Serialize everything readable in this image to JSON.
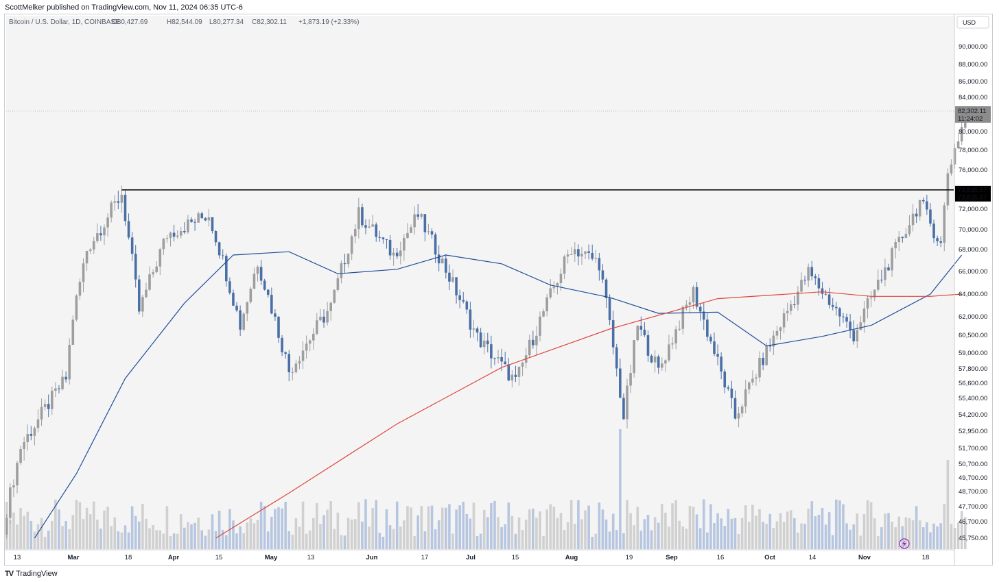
{
  "header": {
    "published": "ScottMelker published on TradingView.com, Nov 11, 2024 06:35 UTC-6"
  },
  "legend": {
    "symbol": "Bitcoin / U.S. Dollar, 1D, COINBASE",
    "open": "O80,427.69",
    "high": "H82,544.09",
    "low": "L80,277.34",
    "close": "C82,302.11",
    "change": "+1,873.19 (+2.33%)"
  },
  "footer": {
    "brand": "TradingView",
    "logo": "tradingview-logo-icon"
  },
  "colors": {
    "background": "#f4f4f4",
    "up_candle": "#9e9e9e",
    "down_candle": "#4a6fa5",
    "ma_short": "#1f4e99",
    "ma_long": "#e0453a",
    "resistance": "#000000",
    "volume_up": "#d0d0d0",
    "volume_down": "#b7c6e0"
  },
  "chart_data": {
    "type": "candlestick",
    "title": "Bitcoin / U.S. Dollar, 1D, COINBASE",
    "currency": "USD",
    "x_axis_ticks": [
      "13",
      "Mar",
      "18",
      "Apr",
      "15",
      "May",
      "13",
      "Jun",
      "17",
      "Jul",
      "15",
      "Aug",
      "19",
      "Sep",
      "16",
      "Oct",
      "14",
      "Nov",
      "18"
    ],
    "y_axis_ticks": [
      "90,000.00",
      "88,000.00",
      "86,000.00",
      "84,000.00",
      "80,000.00",
      "78,000.00",
      "76,000.00",
      "72,000.00",
      "70,000.00",
      "68,000.00",
      "66,000.00",
      "64,000.00",
      "62,000.00",
      "60,500.00",
      "59,000.00",
      "57,800.00",
      "56,600.00",
      "55,400.00",
      "54,200.00",
      "52,950.00",
      "51,700.00",
      "50,700.00",
      "49,700.00",
      "48,700.00",
      "47,700.00",
      "46,700.00",
      "45,750.00"
    ],
    "last_price": "82,302.11",
    "countdown": "11:24:02",
    "resistance_level": 73835.57,
    "resistance_label": "73,835.57",
    "resistance_start": "2024-03-14",
    "ohlc_last": {
      "open": 80427.69,
      "high": 82544.09,
      "low": 80277.34,
      "close": 82302.11
    },
    "close_path": [
      {
        "date": "2024-02-08",
        "price": 45300
      },
      {
        "date": "2024-02-14",
        "price": 51800
      },
      {
        "date": "2024-02-27",
        "price": 57000
      },
      {
        "date": "2024-02-29",
        "price": 62000
      },
      {
        "date": "2024-03-04",
        "price": 68000
      },
      {
        "date": "2024-03-14",
        "price": 73500
      },
      {
        "date": "2024-03-19",
        "price": 62500
      },
      {
        "date": "2024-03-27",
        "price": 69500
      },
      {
        "date": "2024-04-08",
        "price": 71500
      },
      {
        "date": "2024-04-17",
        "price": 61300
      },
      {
        "date": "2024-04-22",
        "price": 66900
      },
      {
        "date": "2024-05-01",
        "price": 57600
      },
      {
        "date": "2024-05-13",
        "price": 62900
      },
      {
        "date": "2024-05-21",
        "price": 71500
      },
      {
        "date": "2024-05-31",
        "price": 67500
      },
      {
        "date": "2024-06-07",
        "price": 71400
      },
      {
        "date": "2024-06-24",
        "price": 60300
      },
      {
        "date": "2024-07-05",
        "price": 56700
      },
      {
        "date": "2024-07-21",
        "price": 68200
      },
      {
        "date": "2024-07-29",
        "price": 66800
      },
      {
        "date": "2024-08-05",
        "price": 54000
      },
      {
        "date": "2024-08-09",
        "price": 61300
      },
      {
        "date": "2024-08-15",
        "price": 57600
      },
      {
        "date": "2024-08-25",
        "price": 64200
      },
      {
        "date": "2024-09-06",
        "price": 54000
      },
      {
        "date": "2024-09-17",
        "price": 60300
      },
      {
        "date": "2024-09-27",
        "price": 65900
      },
      {
        "date": "2024-10-10",
        "price": 60500
      },
      {
        "date": "2024-10-21",
        "price": 67400
      },
      {
        "date": "2024-10-29",
        "price": 72700
      },
      {
        "date": "2024-11-04",
        "price": 68500
      },
      {
        "date": "2024-11-06",
        "price": 75800
      },
      {
        "date": "2024-11-10",
        "price": 80500
      },
      {
        "date": "2024-11-11",
        "price": 82302
      }
    ],
    "moving_average_50": [
      {
        "date": "2024-02-18",
        "price": 45750
      },
      {
        "date": "2024-03-01",
        "price": 50000
      },
      {
        "date": "2024-03-15",
        "price": 57000
      },
      {
        "date": "2024-04-01",
        "price": 63200
      },
      {
        "date": "2024-04-15",
        "price": 67500
      },
      {
        "date": "2024-05-01",
        "price": 67800
      },
      {
        "date": "2024-05-15",
        "price": 65800
      },
      {
        "date": "2024-06-01",
        "price": 66200
      },
      {
        "date": "2024-06-15",
        "price": 67500
      },
      {
        "date": "2024-07-01",
        "price": 66700
      },
      {
        "date": "2024-07-15",
        "price": 64800
      },
      {
        "date": "2024-08-01",
        "price": 63700
      },
      {
        "date": "2024-08-15",
        "price": 62300
      },
      {
        "date": "2024-09-01",
        "price": 62400
      },
      {
        "date": "2024-09-15",
        "price": 59600
      },
      {
        "date": "2024-10-01",
        "price": 60400
      },
      {
        "date": "2024-10-15",
        "price": 61300
      },
      {
        "date": "2024-11-01",
        "price": 64000
      },
      {
        "date": "2024-11-10",
        "price": 67500
      }
    ],
    "moving_average_200": [
      {
        "date": "2024-04-10",
        "price": 45750
      },
      {
        "date": "2024-05-01",
        "price": 48600
      },
      {
        "date": "2024-06-01",
        "price": 53500
      },
      {
        "date": "2024-07-01",
        "price": 57900
      },
      {
        "date": "2024-08-01",
        "price": 61000
      },
      {
        "date": "2024-09-01",
        "price": 63600
      },
      {
        "date": "2024-10-01",
        "price": 64200
      },
      {
        "date": "2024-10-15",
        "price": 63800
      },
      {
        "date": "2024-11-01",
        "price": 63800
      },
      {
        "date": "2024-11-10",
        "price": 64000
      }
    ],
    "grid": false,
    "legend_placement": "top-left"
  }
}
